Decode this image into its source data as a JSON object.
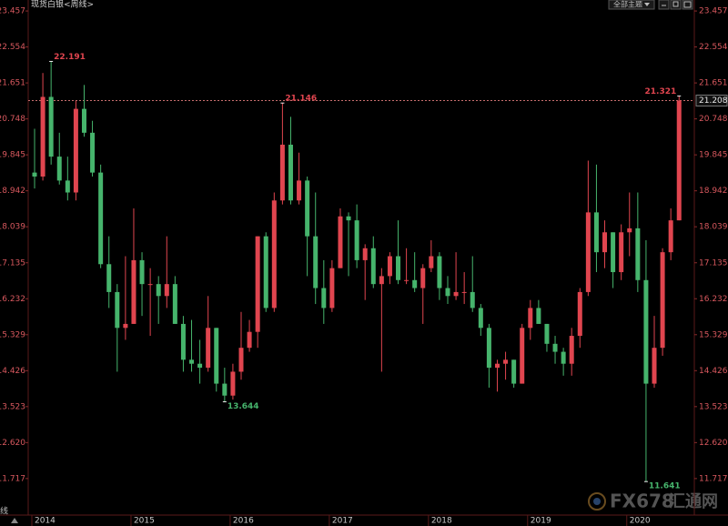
{
  "chart_data": {
    "type": "candlestick",
    "title": "现货白银<周线>",
    "categories": [
      "2014",
      null,
      null,
      null,
      null,
      null,
      null,
      null,
      null,
      null,
      null,
      null,
      "2015",
      null,
      null,
      null,
      null,
      null,
      null,
      null,
      null,
      null,
      null,
      null,
      "2016",
      null,
      null,
      null,
      null,
      null,
      null,
      null,
      null,
      null,
      null,
      null,
      "2017",
      null,
      null,
      null,
      null,
      null,
      null,
      null,
      null,
      null,
      null,
      null,
      "2018",
      null,
      null,
      null,
      null,
      null,
      null,
      null,
      null,
      null,
      null,
      null,
      "2019",
      null,
      null,
      null,
      null,
      null,
      null,
      null,
      null,
      null,
      null,
      null,
      "2020",
      null,
      null,
      null,
      null,
      null,
      null
    ],
    "open": [
      19.4,
      19.3,
      21.3,
      19.8,
      19.2,
      18.9,
      21.0,
      20.4,
      19.4,
      17.1,
      16.4,
      15.5,
      15.6,
      17.2,
      16.6,
      16.6,
      16.3,
      16.6,
      15.6,
      14.7,
      14.6,
      14.5,
      15.5,
      14.1,
      13.8,
      14.4,
      15.0,
      15.4,
      17.8,
      16.0,
      18.7,
      20.1,
      18.7,
      19.2,
      17.8,
      16.5,
      16.0,
      17.0,
      18.3,
      18.2,
      17.2,
      17.5,
      16.6,
      16.8,
      17.3,
      16.7,
      16.7,
      16.5,
      17.0,
      17.3,
      16.5,
      16.3,
      16.4,
      16.4,
      16.0,
      15.5,
      14.5,
      14.6,
      14.7,
      14.1,
      15.5,
      16.0,
      15.6,
      15.1,
      14.9,
      14.6,
      15.3,
      16.4,
      18.4,
      17.4,
      17.9,
      16.9,
      17.9,
      18.0,
      16.7,
      14.1,
      15.0,
      17.4,
      18.2
    ],
    "high": [
      20.5,
      21.9,
      22.191,
      20.4,
      19.8,
      21.2,
      21.6,
      20.7,
      19.6,
      17.8,
      16.6,
      17.3,
      18.5,
      17.4,
      17.0,
      16.8,
      17.8,
      16.8,
      15.8,
      15.7,
      15.2,
      16.3,
      15.5,
      14.5,
      14.6,
      15.9,
      15.7,
      17.8,
      17.9,
      18.9,
      21.146,
      20.8,
      19.9,
      19.3,
      18.9,
      17.2,
      17.2,
      18.5,
      18.4,
      18.6,
      17.6,
      17.8,
      17.0,
      17.4,
      18.2,
      17.5,
      17.4,
      17.1,
      17.7,
      17.4,
      16.8,
      17.4,
      16.9,
      17.3,
      16.1,
      15.6,
      14.7,
      14.9,
      14.7,
      15.6,
      16.2,
      16.2,
      15.6,
      15.3,
      15.0,
      15.5,
      16.5,
      19.7,
      19.6,
      18.2,
      17.9,
      18.1,
      18.9,
      18.9,
      17.7,
      15.8,
      17.5,
      18.5,
      21.321
    ],
    "low": [
      19.0,
      19.2,
      19.6,
      19.1,
      18.7,
      18.7,
      20.3,
      19.3,
      17.0,
      16.0,
      14.4,
      15.2,
      15.6,
      15.8,
      15.3,
      15.6,
      16.0,
      15.6,
      14.4,
      14.4,
      14.1,
      14.4,
      13.9,
      13.644,
      13.7,
      14.2,
      14.9,
      15.0,
      15.9,
      15.9,
      18.6,
      18.6,
      18.6,
      16.8,
      16.1,
      15.6,
      15.9,
      17.0,
      16.8,
      17.0,
      16.2,
      16.5,
      14.4,
      16.6,
      16.6,
      16.6,
      16.4,
      15.6,
      16.9,
      16.2,
      16.1,
      16.2,
      16.1,
      15.9,
      15.3,
      14.0,
      13.9,
      14.2,
      14.0,
      14.1,
      15.2,
      15.6,
      14.9,
      14.6,
      14.3,
      14.3,
      15.0,
      16.3,
      16.9,
      17.0,
      16.5,
      16.7,
      17.3,
      16.4,
      11.641,
      14.0,
      14.8,
      17.2,
      18.2
    ],
    "close": [
      19.3,
      21.3,
      19.8,
      19.2,
      18.9,
      21.0,
      20.4,
      19.4,
      17.1,
      16.4,
      15.5,
      15.6,
      17.2,
      16.6,
      16.6,
      16.3,
      16.6,
      15.6,
      14.7,
      14.6,
      14.5,
      15.5,
      14.1,
      13.8,
      14.4,
      15.0,
      15.4,
      17.8,
      16.0,
      18.7,
      20.1,
      18.7,
      19.2,
      17.8,
      16.5,
      16.0,
      17.0,
      18.3,
      18.2,
      17.2,
      17.5,
      16.6,
      16.8,
      17.3,
      16.7,
      16.7,
      16.5,
      17.0,
      17.3,
      16.5,
      16.3,
      16.4,
      16.4,
      16.0,
      15.5,
      14.5,
      14.6,
      14.7,
      14.1,
      15.5,
      16.0,
      15.6,
      15.1,
      14.9,
      14.6,
      15.3,
      16.4,
      18.4,
      17.4,
      17.9,
      16.9,
      17.9,
      18.0,
      16.7,
      14.1,
      15.0,
      17.4,
      18.2,
      21.208
    ],
    "up_color": "#e0454f",
    "down_color": "#46b46c",
    "ylim": [
      10.8,
      23.55
    ],
    "yticks": [
      23.457,
      22.554,
      21.651,
      20.748,
      19.845,
      18.942,
      18.039,
      17.135,
      16.232,
      15.329,
      14.426,
      13.523,
      {
        "value": 12.62,
        "label": "12.620"
      },
      11.717
    ]
  },
  "ui": {
    "theme_button": "全部主题",
    "side_tab": "线"
  },
  "watermark": {
    "brand": "FX678",
    "site": "汇通网"
  }
}
